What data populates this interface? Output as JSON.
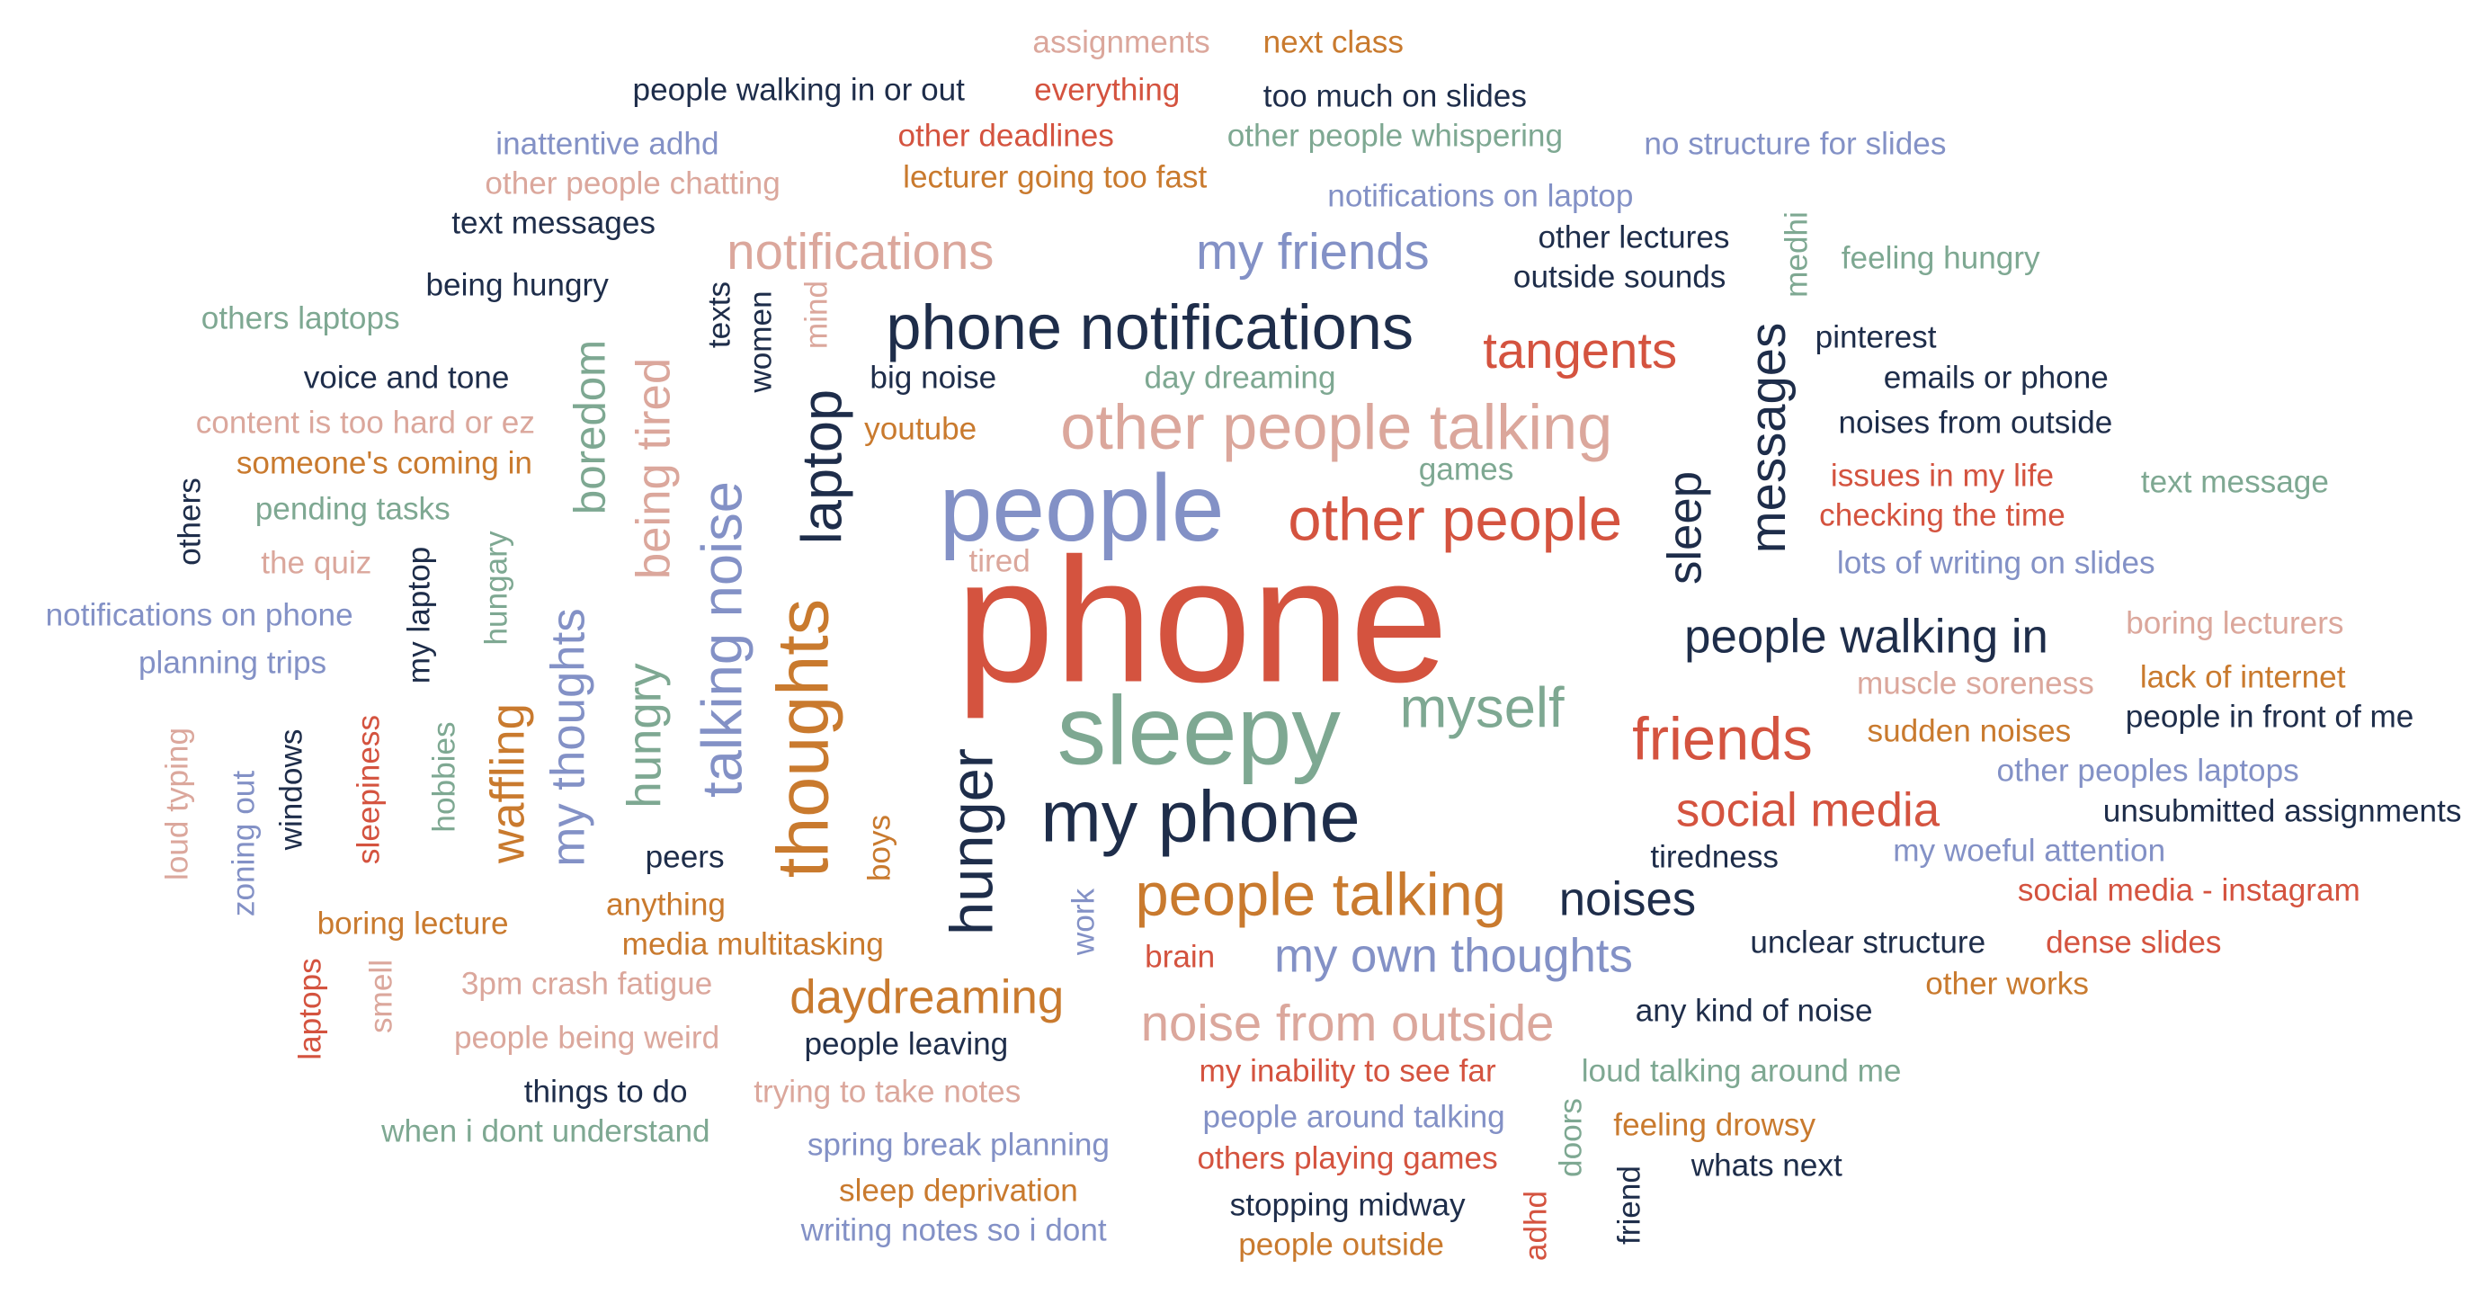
{
  "words": [
    {
      "text": "phone",
      "color": "red"
    },
    {
      "text": "people",
      "color": "blue"
    },
    {
      "text": "sleepy",
      "color": "green"
    },
    {
      "text": "my phone",
      "color": "navy"
    },
    {
      "text": "phone notifications",
      "color": "navy"
    },
    {
      "text": "other people talking",
      "color": "pink"
    },
    {
      "text": "other people",
      "color": "red"
    },
    {
      "text": "friends",
      "color": "red"
    },
    {
      "text": "myself",
      "color": "green"
    },
    {
      "text": "people talking",
      "color": "orange"
    },
    {
      "text": "thoughts",
      "color": "orange"
    },
    {
      "text": "social media",
      "color": "red"
    },
    {
      "text": "people walking in",
      "color": "navy"
    },
    {
      "text": "noise from outside",
      "color": "pink"
    },
    {
      "text": "daydreaming",
      "color": "orange"
    },
    {
      "text": "my own thoughts",
      "color": "blue"
    },
    {
      "text": "my friends",
      "color": "blue"
    },
    {
      "text": "notifications",
      "color": "pink"
    },
    {
      "text": "tangents",
      "color": "red"
    },
    {
      "text": "noises",
      "color": "navy"
    },
    {
      "text": "hunger",
      "color": "navy"
    },
    {
      "text": "laptop",
      "color": "navy"
    },
    {
      "text": "talking noise",
      "color": "blue"
    },
    {
      "text": "messages",
      "color": "navy"
    },
    {
      "text": "sleep",
      "color": "navy"
    },
    {
      "text": "waffling",
      "color": "orange"
    },
    {
      "text": "my thoughts",
      "color": "blue"
    },
    {
      "text": "hungry",
      "color": "green"
    },
    {
      "text": "being tired",
      "color": "pink"
    },
    {
      "text": "boredom",
      "color": "green"
    },
    {
      "text": "assignments",
      "color": "pink"
    },
    {
      "text": "next class",
      "color": "orange"
    },
    {
      "text": "people walking in or out",
      "color": "navy"
    },
    {
      "text": "everything",
      "color": "red"
    },
    {
      "text": "too much on slides",
      "color": "navy"
    },
    {
      "text": "inattentive adhd",
      "color": "blue"
    },
    {
      "text": "other deadlines",
      "color": "red"
    },
    {
      "text": "other people whispering",
      "color": "green"
    },
    {
      "text": "no structure for slides",
      "color": "blue"
    },
    {
      "text": "other people chatting",
      "color": "pink"
    },
    {
      "text": "lecturer going too fast",
      "color": "orange"
    },
    {
      "text": "notifications on laptop",
      "color": "blue"
    },
    {
      "text": "text messages",
      "color": "navy"
    },
    {
      "text": "other lectures",
      "color": "navy"
    },
    {
      "text": "outside sounds",
      "color": "navy"
    },
    {
      "text": "feeling hungry",
      "color": "green"
    },
    {
      "text": "being hungry",
      "color": "navy"
    },
    {
      "text": "others laptops",
      "color": "green"
    },
    {
      "text": "pinterest",
      "color": "navy"
    },
    {
      "text": "voice and tone",
      "color": "navy"
    },
    {
      "text": "big noise",
      "color": "navy"
    },
    {
      "text": "day dreaming",
      "color": "green"
    },
    {
      "text": "emails or phone",
      "color": "navy"
    },
    {
      "text": "content is too hard or ez",
      "color": "pink"
    },
    {
      "text": "youtube",
      "color": "orange"
    },
    {
      "text": "noises from outside",
      "color": "navy"
    },
    {
      "text": "someone's coming in",
      "color": "orange"
    },
    {
      "text": "games",
      "color": "green"
    },
    {
      "text": "issues in my life",
      "color": "red"
    },
    {
      "text": "text message",
      "color": "green"
    },
    {
      "text": "pending tasks",
      "color": "green"
    },
    {
      "text": "checking the time",
      "color": "red"
    },
    {
      "text": "the quiz",
      "color": "pink"
    },
    {
      "text": "tired",
      "color": "pink"
    },
    {
      "text": "lots of writing on slides",
      "color": "blue"
    },
    {
      "text": "notifications on phone",
      "color": "blue"
    },
    {
      "text": "boring lecturers",
      "color": "pink"
    },
    {
      "text": "planning trips",
      "color": "blue"
    },
    {
      "text": "lack of internet",
      "color": "orange"
    },
    {
      "text": "muscle soreness",
      "color": "pink"
    },
    {
      "text": "people in front of me",
      "color": "navy"
    },
    {
      "text": "sudden noises",
      "color": "orange"
    },
    {
      "text": "other peoples laptops",
      "color": "blue"
    },
    {
      "text": "unsubmitted assignments",
      "color": "navy"
    },
    {
      "text": "my woeful attention",
      "color": "blue"
    },
    {
      "text": "tiredness",
      "color": "navy"
    },
    {
      "text": "peers",
      "color": "navy"
    },
    {
      "text": "social media - instagram",
      "color": "red"
    },
    {
      "text": "anything",
      "color": "orange"
    },
    {
      "text": "boring lecture",
      "color": "orange"
    },
    {
      "text": "media multitasking",
      "color": "orange"
    },
    {
      "text": "brain",
      "color": "red"
    },
    {
      "text": "unclear structure",
      "color": "navy"
    },
    {
      "text": "dense slides",
      "color": "red"
    },
    {
      "text": "3pm crash fatigue",
      "color": "pink"
    },
    {
      "text": "other works",
      "color": "orange"
    },
    {
      "text": "people being weird",
      "color": "pink"
    },
    {
      "text": "people leaving",
      "color": "navy"
    },
    {
      "text": "any kind of noise",
      "color": "navy"
    },
    {
      "text": "things to do",
      "color": "navy"
    },
    {
      "text": "trying to take notes",
      "color": "pink"
    },
    {
      "text": "my inability to see far",
      "color": "red"
    },
    {
      "text": "loud talking around me",
      "color": "green"
    },
    {
      "text": "when i dont understand",
      "color": "green"
    },
    {
      "text": "people around talking",
      "color": "blue"
    },
    {
      "text": "feeling drowsy",
      "color": "orange"
    },
    {
      "text": "spring break planning",
      "color": "blue"
    },
    {
      "text": "others playing games",
      "color": "red"
    },
    {
      "text": "whats next",
      "color": "navy"
    },
    {
      "text": "sleep deprivation",
      "color": "orange"
    },
    {
      "text": "stopping midway",
      "color": "navy"
    },
    {
      "text": "writing notes so i dont",
      "color": "blue"
    },
    {
      "text": "people outside",
      "color": "orange"
    },
    {
      "text": "others",
      "color": "navy"
    },
    {
      "text": "my laptop",
      "color": "navy"
    },
    {
      "text": "hungary",
      "color": "green"
    },
    {
      "text": "loud typing",
      "color": "pink"
    },
    {
      "text": "zoning out",
      "color": "blue"
    },
    {
      "text": "windows",
      "color": "navy"
    },
    {
      "text": "sleepiness",
      "color": "red"
    },
    {
      "text": "hobbies",
      "color": "green"
    },
    {
      "text": "boys",
      "color": "orange"
    },
    {
      "text": "work",
      "color": "blue"
    },
    {
      "text": "laptops",
      "color": "red"
    },
    {
      "text": "smell",
      "color": "pink"
    },
    {
      "text": "texts",
      "color": "navy"
    },
    {
      "text": "women",
      "color": "navy"
    },
    {
      "text": "mind",
      "color": "pink"
    },
    {
      "text": "medhi",
      "color": "green"
    },
    {
      "text": "doors",
      "color": "green"
    },
    {
      "text": "adhd",
      "color": "red"
    },
    {
      "text": "friend",
      "color": "navy"
    }
  ]
}
